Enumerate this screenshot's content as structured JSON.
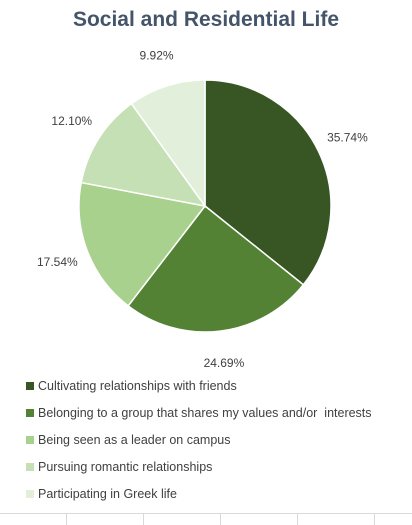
{
  "chart_data": {
    "type": "pie",
    "title": "Social and Residential Life",
    "slices": [
      {
        "label": "Cultivating relationships with friends",
        "value": 35.74,
        "display": "35.74%",
        "color": "#375623"
      },
      {
        "label": "Belonging to a group that shares my values and/or  interests",
        "value": 24.69,
        "display": "24.69%",
        "color": "#548235"
      },
      {
        "label": "Being seen as a leader on campus",
        "value": 17.54,
        "display": "17.54%",
        "color": "#a9d18e"
      },
      {
        "label": "Pursuing romantic relationships",
        "value": 12.1,
        "display": "12.10%",
        "color": "#c5e0b4"
      },
      {
        "label": "Participating in Greek life",
        "value": 9.92,
        "display": "9.92%",
        "color": "#e2efda"
      }
    ],
    "legend_position": "bottom"
  }
}
